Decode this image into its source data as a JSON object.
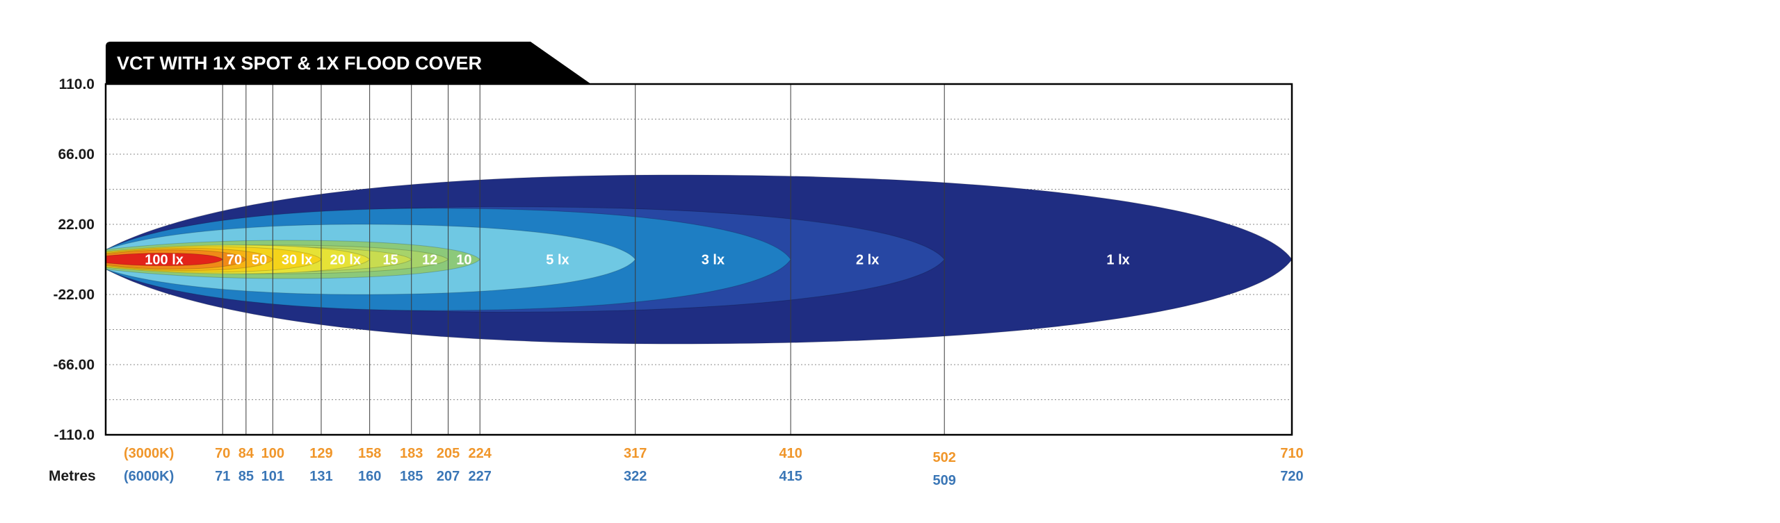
{
  "chart_data": {
    "type": "heatmap",
    "title": "VCT WITH 1X SPOT & 1X FLOOD COVER",
    "xlabel": "Metres",
    "xlim": [
      0,
      710
    ],
    "ylim": [
      -110,
      110
    ],
    "y_ticks": [
      "110.0",
      "66.00",
      "22.00",
      "-22.00",
      "-66.00",
      "-110.0"
    ],
    "y_tick_values": [
      110,
      66,
      22,
      -22,
      -66,
      -110
    ],
    "grid": true,
    "color_temps": [
      "(3000K)",
      "(6000K)"
    ],
    "zones": [
      {
        "label": "1 lx",
        "lux": 1,
        "reach_3000K": 710,
        "reach_6000K": 720,
        "half_width": 53,
        "color": "#1f2d82"
      },
      {
        "label": "2 lx",
        "lux": 2,
        "reach_3000K": 502,
        "reach_6000K": 509,
        "half_width": 33,
        "color": "#2747a3"
      },
      {
        "label": "3 lx",
        "lux": 3,
        "reach_3000K": 410,
        "reach_6000K": 415,
        "half_width": 32,
        "color": "#1e7ec3"
      },
      {
        "label": "5 lx",
        "lux": 5,
        "reach_3000K": 317,
        "reach_6000K": 322,
        "half_width": 22,
        "color": "#6fc8e3"
      },
      {
        "label": "10",
        "lux": 10,
        "reach_3000K": 224,
        "reach_6000K": 227,
        "half_width": 12,
        "color": "#8cc97a"
      },
      {
        "label": "12",
        "lux": 12,
        "reach_3000K": 205,
        "reach_6000K": 207,
        "half_width": 9,
        "color": "#a7d36a"
      },
      {
        "label": "15",
        "lux": 15,
        "reach_3000K": 183,
        "reach_6000K": 185,
        "half_width": 8,
        "color": "#c8dc50"
      },
      {
        "label": "20 lx",
        "lux": 20,
        "reach_3000K": 158,
        "reach_6000K": 160,
        "half_width": 9,
        "color": "#e6e236"
      },
      {
        "label": "30 lx",
        "lux": 30,
        "reach_3000K": 129,
        "reach_6000K": 131,
        "half_width": 8,
        "color": "#f4d31a"
      },
      {
        "label": "50",
        "lux": 50,
        "reach_3000K": 100,
        "reach_6000K": 101,
        "half_width": 7,
        "color": "#f6b314"
      },
      {
        "label": "70",
        "lux": 70,
        "reach_3000K": 84,
        "reach_6000K": 85,
        "half_width": 6,
        "color": "#f08a18"
      },
      {
        "label": "100 lx",
        "lux": 100,
        "reach_3000K": 70,
        "reach_6000K": 71,
        "half_width": 4,
        "color": "#e2231a"
      }
    ],
    "x_ticks_3000K": [
      "70",
      "84",
      "100",
      "129",
      "158",
      "183",
      "205",
      "224",
      "317",
      "410",
      "502",
      "710"
    ],
    "x_ticks_6000K": [
      "71",
      "85",
      "101",
      "131",
      "160",
      "185",
      "207",
      "227",
      "322",
      "415",
      "509",
      "720"
    ],
    "x_tick_values": [
      70,
      84,
      100,
      129,
      158,
      183,
      205,
      224,
      317,
      410,
      502,
      710
    ]
  }
}
